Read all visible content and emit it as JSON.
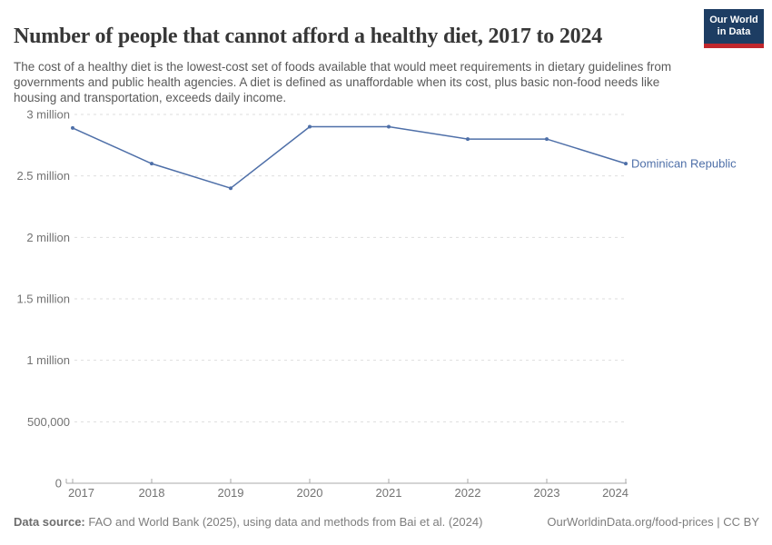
{
  "header": {
    "title": "Number of people that cannot afford a healthy diet, 2017 to 2024",
    "subtitle": "The cost of a healthy diet is the lowest-cost set of foods available that would meet requirements in dietary guidelines from governments and public health agencies. A diet is defined as unaffordable when its cost, plus basic non-food needs like housing and transportation, exceeds daily income."
  },
  "logo": {
    "line1": "Our World",
    "line2": "in Data",
    "bg_color": "#1d3d63",
    "accent_color": "#c0272d"
  },
  "chart_data": {
    "type": "line",
    "title": "Number of people that cannot afford a healthy diet",
    "x": [
      2017,
      2018,
      2019,
      2020,
      2021,
      2022,
      2023,
      2024
    ],
    "series": [
      {
        "name": "Dominican Republic",
        "color": "#4e6fa8",
        "values": [
          2890000,
          2600000,
          2400000,
          2900000,
          2900000,
          2800000,
          2800000,
          2600000
        ]
      }
    ],
    "ylim": [
      0,
      3000000
    ],
    "yticks": [
      {
        "value": 0,
        "label": "0"
      },
      {
        "value": 500000,
        "label": "500,000"
      },
      {
        "value": 1000000,
        "label": "1 million"
      },
      {
        "value": 1500000,
        "label": "1.5 million"
      },
      {
        "value": 2000000,
        "label": "2 million"
      },
      {
        "value": 2500000,
        "label": "2.5 million"
      },
      {
        "value": 3000000,
        "label": "3 million"
      }
    ],
    "grid": "horizontal-dashed",
    "legend_position": "end-of-line",
    "entity_label": "Dominican Republic",
    "colors": {
      "grid": "#dedede",
      "axis": "#a8a8a8",
      "tick_text": "#737373"
    }
  },
  "footer": {
    "source_label": "Data source:",
    "source_text": " FAO and World Bank (2025), using data and methods from Bai et al. (2024)",
    "link_text": "OurWorldinData.org/food-prices",
    "separator": " | ",
    "license_text": "CC BY"
  }
}
